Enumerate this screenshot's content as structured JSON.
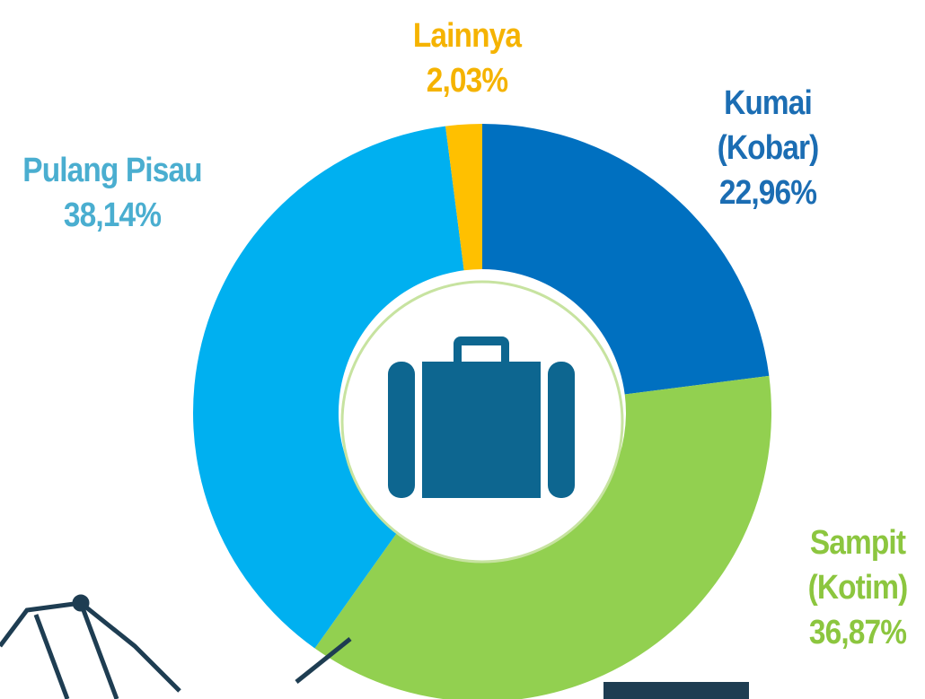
{
  "chart_data": {
    "type": "donut",
    "categories": [
      "Kumai (Kobar)",
      "Sampit (Kotim)",
      "Pulang Pisau",
      "Lainnya"
    ],
    "values": [
      22.96,
      36.87,
      38.14,
      2.03
    ],
    "value_labels": [
      "22,96%",
      "36,87%",
      "38,14%",
      "2,03%"
    ],
    "colors": [
      "#0070c0",
      "#92d050",
      "#00b0f0",
      "#ffc000"
    ]
  }
}
